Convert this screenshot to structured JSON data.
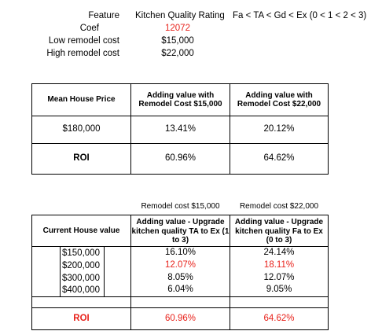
{
  "info": {
    "feature_label": "Feature",
    "feature_value": "Kitchen Quality Rating",
    "feature_scale": "Fa < TA < Gd < Ex (0 < 1 < 2 < 3)",
    "coef_label": "Coef",
    "coef_value": "12072",
    "low_label": "Low remodel cost",
    "low_value": "$15,000",
    "high_label": "High remodel cost",
    "high_value": "$22,000"
  },
  "table1": {
    "header_col1": "Mean House Price",
    "header_col2": "Adding value with Remodel Cost $15,000",
    "header_col3": "Adding value with Remodel Cost $22,000",
    "row1": [
      "$180,000",
      "13.41%",
      "20.12%"
    ],
    "row2": [
      "ROI",
      "60.96%",
      "64.62%"
    ]
  },
  "table2": {
    "caption_col2": "Remodel cost $15,000",
    "caption_col3": "Remodel cost $22,000",
    "header_col1": "Current House value",
    "header_col2": "Adding value - Upgrade kitchen quality TA to Ex (1 to 3)",
    "header_col3": "Adding value - Upgrade kitchen quality Fa to Ex (0 to 3)",
    "rows": [
      [
        "$150,000",
        "16.10%",
        "24.14%"
      ],
      [
        "$200,000",
        "12.07%",
        "18.11%"
      ],
      [
        "$300,000",
        "8.05%",
        "12.07%"
      ],
      [
        "$400,000",
        "6.04%",
        "9.05%"
      ]
    ],
    "roi": [
      "ROI",
      "60.96%",
      "64.62%"
    ]
  },
  "colors": {
    "highlight": "#e8221b"
  }
}
